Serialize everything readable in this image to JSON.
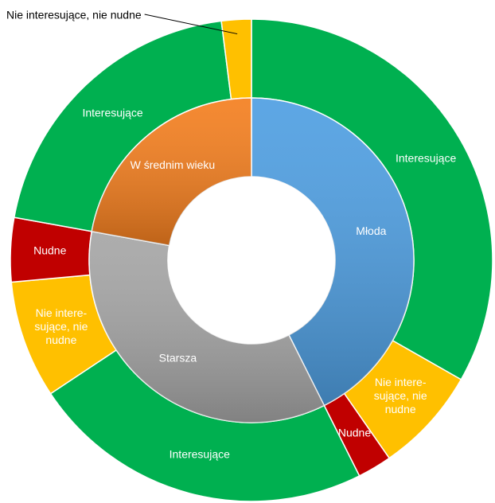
{
  "chart_data": {
    "type": "sunburst",
    "series": [
      {
        "name": "Młoda",
        "color": "#4f9fe2",
        "children": [
          {
            "name": "Interesujące",
            "value": 33.3,
            "color": "#00b050"
          },
          {
            "name": [
              "Nie intere-",
              "sujące, nie",
              "nudne"
            ],
            "value": 7.1,
            "color": "#ffc000"
          },
          {
            "name": "Nudne",
            "value": 2.3,
            "color": "#c00000"
          }
        ]
      },
      {
        "name": "Starsza",
        "color": "#a6a6a6",
        "children": [
          {
            "name": "Interesujące",
            "value": 23.1,
            "color": "#00b050"
          },
          {
            "name": [
              "Nie intere-",
              "sujące, nie",
              "nudne"
            ],
            "value": 7.9,
            "color": "#ffc000"
          },
          {
            "name": "Nudne",
            "value": 4.3,
            "color": "#c00000"
          }
        ]
      },
      {
        "name": "W średnim wieku",
        "color": "#f47f1f",
        "children": [
          {
            "name": "Interesujące",
            "value": 20.2,
            "color": "#00b050"
          },
          {
            "name": "Nie interesujące, nie nudne",
            "value": 2.0,
            "color": "#ffc000",
            "callout": true
          }
        ]
      }
    ]
  }
}
